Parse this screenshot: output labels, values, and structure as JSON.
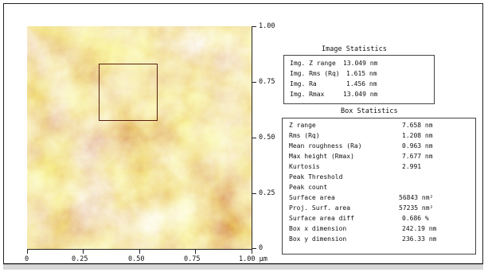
{
  "axis": {
    "y_labels": [
      "1.00",
      "0.75",
      "0.50",
      "0.25",
      "0"
    ],
    "x_labels": [
      "0",
      "0.25",
      "0.50",
      "0.75",
      "1.00 µm"
    ]
  },
  "image_statistics": {
    "title": "Image Statistics",
    "rows": [
      {
        "label": "Img. Z range",
        "value": "13.049 nm"
      },
      {
        "label": "Img. Rms (Rq)",
        "value": "1.615 nm"
      },
      {
        "label": "Img. Ra",
        "value": "1.456 nm"
      },
      {
        "label": "Img. Rmax",
        "value": "13.049 nm"
      }
    ]
  },
  "box_statistics": {
    "title": "Box Statistics",
    "rows": [
      {
        "label": "Z range",
        "value": "7.658 nm"
      },
      {
        "label": "Rms (Rq)",
        "value": "1.208 nm"
      },
      {
        "label": "Mean roughness (Ra)",
        "value": "0.963 nm"
      },
      {
        "label": "Max height (Rmax)",
        "value": "7.677 nm"
      },
      {
        "label": "Kurtosis",
        "value": "2.991"
      },
      {
        "label": "Peak Threshold",
        "value": ""
      },
      {
        "label": "Peak count",
        "value": ""
      },
      {
        "label": "Surface area",
        "value": "56843 nm²"
      },
      {
        "label": "Proj. Surf. area",
        "value": "57235 nm²"
      },
      {
        "label": "Surface area diff",
        "value": "0.686 %"
      },
      {
        "label": "Box x dimension",
        "value": "242.19 nm"
      },
      {
        "label": "Box y dimension",
        "value": "236.33 nm"
      }
    ]
  },
  "colors": {
    "afm_dark": "#9b1e0c",
    "afm_mid": "#d58a14",
    "afm_light": "#f2ee3a"
  }
}
